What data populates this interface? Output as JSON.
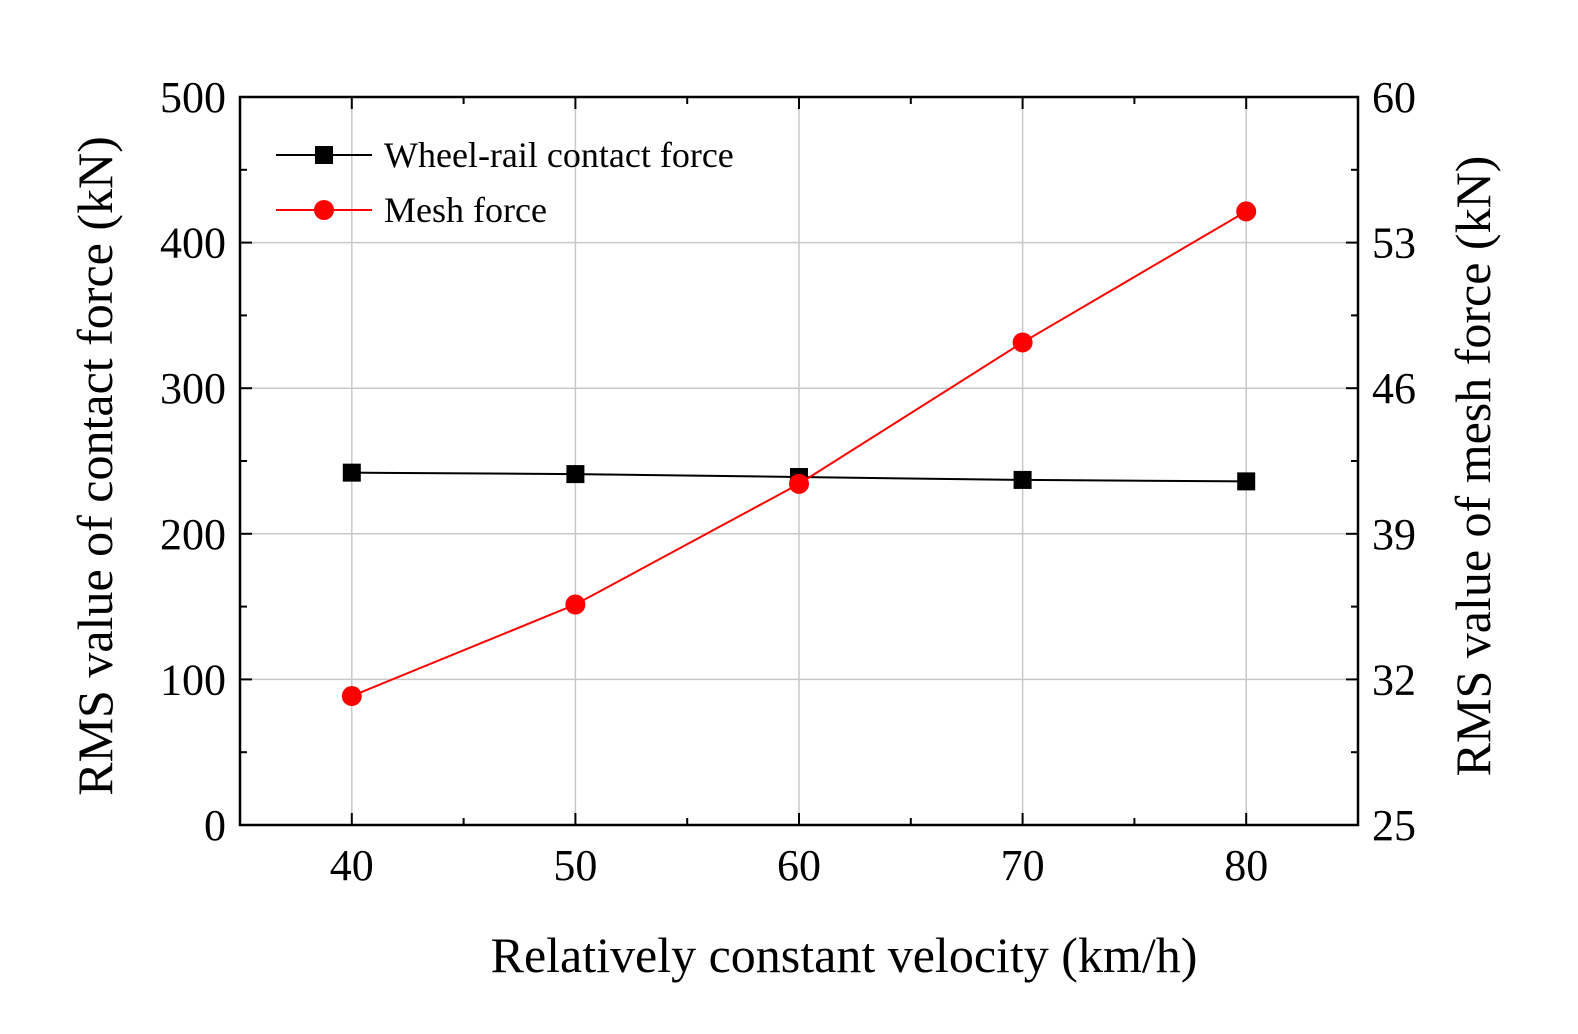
{
  "chart_data": {
    "type": "line",
    "x": [
      40,
      50,
      60,
      70,
      80
    ],
    "xlabel": "Relatively constant velocity (km/h)",
    "xlim": [
      35,
      85
    ],
    "xticks": [
      40,
      50,
      60,
      70,
      80
    ],
    "x_tick_labels": [
      "40",
      "50",
      "60",
      "70",
      "80"
    ],
    "ylabel": "RMS value of contact force (kN)",
    "ylim": [
      0,
      500
    ],
    "yticks": [
      0,
      100,
      200,
      300,
      400,
      500
    ],
    "y_tick_labels": [
      "0",
      "100",
      "200",
      "300",
      "400",
      "500"
    ],
    "y2label": "RMS value of mesh force (kN)",
    "y2lim": [
      25,
      60
    ],
    "y2ticks": [
      25,
      32,
      39,
      46,
      53,
      60
    ],
    "y2_tick_labels": [
      "25",
      "32",
      "39",
      "46",
      "53",
      "60"
    ],
    "grid": true,
    "legend_position": "top-left",
    "series": [
      {
        "name": "Wheel-rail contact force",
        "axis": "left",
        "marker": "square",
        "color": "#000000",
        "values": [
          242,
          241,
          239,
          237,
          236
        ]
      },
      {
        "name": "Mesh force",
        "axis": "right",
        "marker": "circle",
        "color": "#ff0000",
        "values": [
          31.2,
          35.6,
          41.4,
          48.2,
          54.5
        ]
      }
    ]
  }
}
